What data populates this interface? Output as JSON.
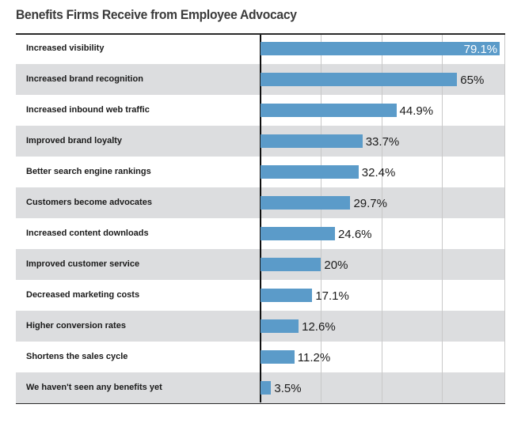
{
  "chart_data": {
    "type": "bar",
    "orientation": "horizontal",
    "title": "Benefits Firms Receive from Employee Advocacy",
    "categories": [
      "Increased visibility",
      "Increased brand recognition",
      "Increased inbound web traffic",
      "Improved brand loyalty",
      "Better search engine rankings",
      "Customers become advocates",
      "Increased content downloads",
      "Improved customer service",
      "Decreased marketing costs",
      "Higher conversion rates",
      "Shortens the sales cycle",
      "We haven't seen any benefits yet"
    ],
    "values": [
      79.1,
      65,
      44.9,
      33.7,
      32.4,
      29.7,
      24.6,
      20,
      17.1,
      12.6,
      11.2,
      3.5
    ],
    "data_labels": [
      "79.1%",
      "65%",
      "44.9%",
      "33.7%",
      "32.4%",
      "29.7%",
      "24.6%",
      "20%",
      "17.1%",
      "12.6%",
      "11.2%",
      "3.5%"
    ],
    "xlim": [
      0,
      80
    ],
    "gridlines": [
      20,
      40,
      60
    ],
    "grid": true,
    "bar_color": "#5b9bc9",
    "alt_row_color": "#dcdddf"
  }
}
